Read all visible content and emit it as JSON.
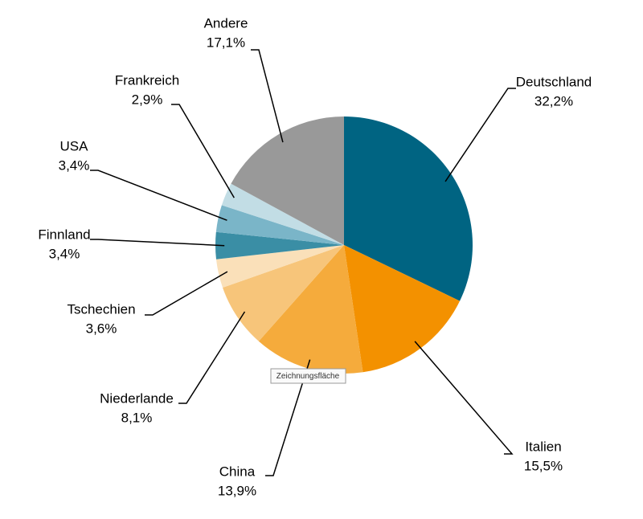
{
  "chart_data": {
    "type": "pie",
    "categories": [
      "Deutschland",
      "Italien",
      "China",
      "Niederlande",
      "Tschechien",
      "Finnland",
      "USA",
      "Frankreich",
      "Andere"
    ],
    "values": [
      32.2,
      15.5,
      13.9,
      8.1,
      3.6,
      3.4,
      3.4,
      2.9,
      17.1
    ],
    "value_labels": [
      "32,2%",
      "15,5%",
      "13,9%",
      "8,1%",
      "3,6%",
      "3,4%",
      "3,4%",
      "2,9%",
      "17,1%"
    ],
    "colors": [
      "#006482",
      "#f39100",
      "#f5ab3c",
      "#f7c57a",
      "#fae0b9",
      "#3a8ea5",
      "#7ab5c8",
      "#c2dde5",
      "#999999"
    ]
  },
  "tooltip": "Zeichnungsfläche"
}
